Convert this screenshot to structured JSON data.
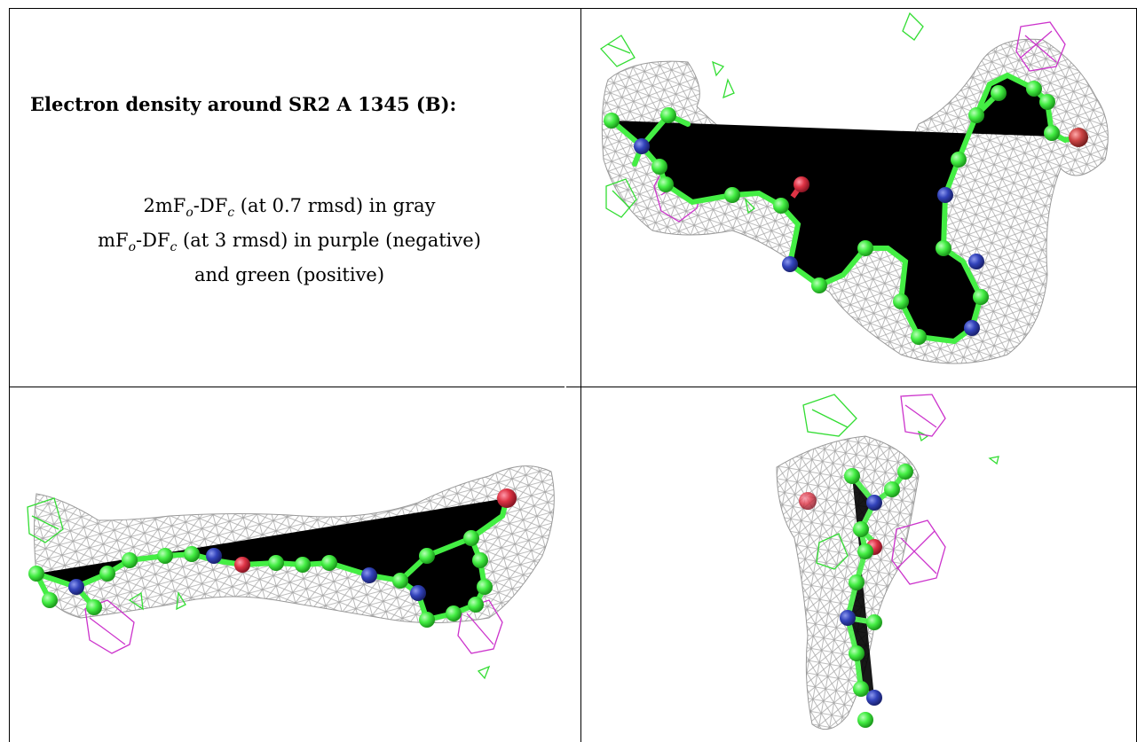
{
  "caption": {
    "title": "Electron density around SR2 A 1345 (B):",
    "line1": {
      "pre": "2mF",
      "s1": "o",
      "mid": "-DF",
      "s2": "c",
      "post": " (at 0.7 rmsd) in gray"
    },
    "line2": {
      "pre": "mF",
      "s1": "o",
      "mid": "-DF",
      "s2": "c",
      "post": " (at 3 rmsd) in purple (negative)"
    },
    "line3": "and green (positive)"
  },
  "colors": {
    "mesh_gray": "#9a9a9a",
    "negative_density": "#cc33cc",
    "positive_density": "#33dd33",
    "carbon": "#44ee44",
    "nitrogen": "#3344bb",
    "oxygen": "#dd3344",
    "bromine": "#cc4444"
  },
  "panels": [
    {
      "name": "view-top-right",
      "description_icon": "molecule-density-view"
    },
    {
      "name": "view-bottom-left",
      "description_icon": "molecule-density-view"
    },
    {
      "name": "view-bottom-right",
      "description_icon": "molecule-density-view"
    }
  ]
}
